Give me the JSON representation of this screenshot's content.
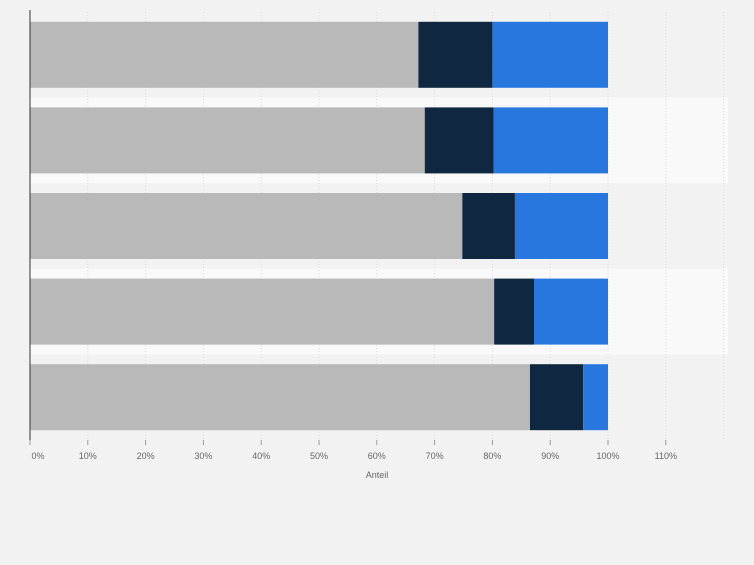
{
  "chart_data": {
    "type": "bar",
    "orientation": "horizontal",
    "stacked": true,
    "categories": [
      "",
      "",
      "",
      "",
      ""
    ],
    "series": [
      {
        "color": "#b9b9b9",
        "values": [
          67.2,
          68.3,
          74.8,
          80.3,
          86.5
        ]
      },
      {
        "color": "#0f2740",
        "values": [
          12.8,
          11.9,
          9.1,
          6.9,
          9.2
        ]
      },
      {
        "color": "#2877de",
        "values": [
          20.0,
          19.8,
          16.1,
          12.8,
          4.3
        ]
      }
    ],
    "xlabel": "Anteil",
    "ylabel": "",
    "xlim": [
      0,
      120
    ],
    "x_ticks": [
      {
        "value": 0,
        "label": "0%"
      },
      {
        "value": 10,
        "label": "10%"
      },
      {
        "value": 20,
        "label": "20%"
      },
      {
        "value": 30,
        "label": "30%"
      },
      {
        "value": 40,
        "label": "40%"
      },
      {
        "value": 50,
        "label": "50%"
      },
      {
        "value": 60,
        "label": "60%"
      },
      {
        "value": 70,
        "label": "70%"
      },
      {
        "value": 80,
        "label": "80%"
      },
      {
        "value": 90,
        "label": "90%"
      },
      {
        "value": 100,
        "label": "100%"
      },
      {
        "value": 110,
        "label": "110%"
      }
    ],
    "grid": true,
    "legend": "none"
  }
}
